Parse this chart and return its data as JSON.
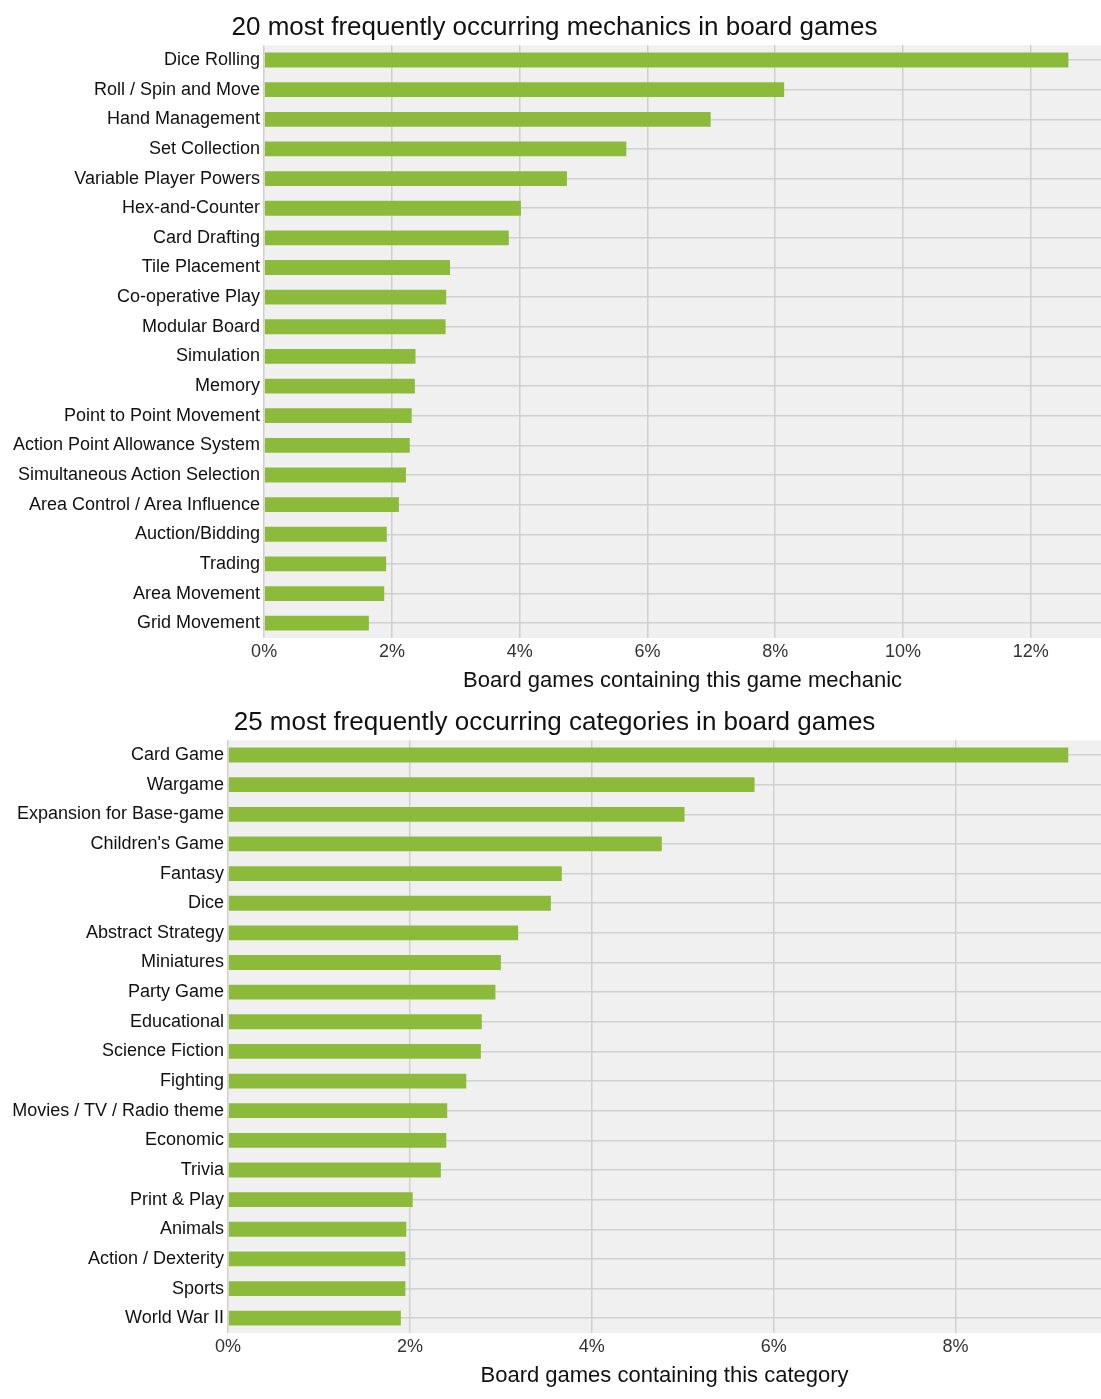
{
  "chart_data": [
    {
      "type": "bar",
      "orientation": "horizontal",
      "title": "20 most frequently occurring mechanics in board games",
      "xlabel": "Board games containing this game mechanic",
      "categories": [
        "Dice Rolling",
        "Roll / Spin and Move",
        "Hand Management",
        "Set Collection",
        "Variable Player Powers",
        "Hex-and-Counter",
        "Card Drafting",
        "Tile Placement",
        "Co-operative Play",
        "Modular Board",
        "Simulation",
        "Memory",
        "Point to Point Movement",
        "Action Point Allowance System",
        "Simultaneous Action Selection",
        "Area Control / Area Influence",
        "Auction/Bidding",
        "Trading",
        "Area Movement",
        "Grid Movement"
      ],
      "values": [
        12.59,
        8.14,
        6.99,
        5.67,
        4.74,
        4.02,
        3.83,
        2.91,
        2.85,
        2.84,
        2.37,
        2.36,
        2.31,
        2.28,
        2.22,
        2.11,
        1.92,
        1.91,
        1.88,
        1.64
      ],
      "color": "#8cbb3c",
      "xlim": [
        0,
        13.1
      ],
      "xticks": [
        {
          "value": 0,
          "label": "0%"
        },
        {
          "value": 2,
          "label": "2%"
        },
        {
          "value": 4,
          "label": "4%"
        },
        {
          "value": 6,
          "label": "6%"
        },
        {
          "value": 8,
          "label": "8%"
        },
        {
          "value": 10,
          "label": "10%"
        },
        {
          "value": 12,
          "label": "12%"
        }
      ],
      "grid": true,
      "legend": false
    },
    {
      "type": "bar",
      "orientation": "horizontal",
      "title": "25 most frequently occurring categories in board games",
      "xlabel": "Board games containing this category",
      "categories": [
        "Card Game",
        "Wargame",
        "Expansion for Base-game",
        "Children's Game",
        "Fantasy",
        "Dice",
        "Abstract Strategy",
        "Miniatures",
        "Party Game",
        "Educational",
        "Science Fiction",
        "Fighting",
        "Movies / TV / Radio theme",
        "Economic",
        "Trivia",
        "Print & Play",
        "Animals",
        "Action / Dexterity",
        "Sports",
        "World War II"
      ],
      "values": [
        9.24,
        5.79,
        5.02,
        4.77,
        3.67,
        3.55,
        3.19,
        3.0,
        2.94,
        2.79,
        2.78,
        2.62,
        2.41,
        2.4,
        2.34,
        2.03,
        1.96,
        1.95,
        1.95,
        1.9
      ],
      "color": "#8cbb3c",
      "xlim": [
        0,
        9.6
      ],
      "xticks": [
        {
          "value": 0,
          "label": "0%"
        },
        {
          "value": 2,
          "label": "2%"
        },
        {
          "value": 4,
          "label": "4%"
        },
        {
          "value": 6,
          "label": "6%"
        },
        {
          "value": 8,
          "label": "8%"
        }
      ],
      "grid": true,
      "legend": false
    }
  ]
}
